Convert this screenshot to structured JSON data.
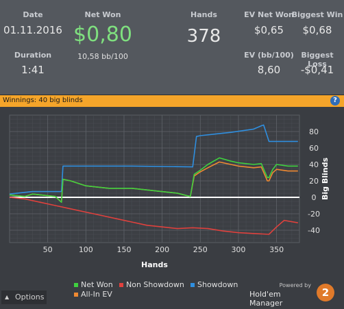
{
  "summary": {
    "date_label": "Date",
    "date_value": "01.11.2016",
    "duration_label": "Duration",
    "duration_value": "1:41",
    "netwon_label": "Net Won",
    "netwon_value": "$0,80",
    "netwon_bb": "10,58 bb/100",
    "hands_label": "Hands",
    "hands_value": "378",
    "ev_netwon_label": "EV Net Won",
    "ev_netwon_value": "$0,65",
    "ev_bb_label": "EV (bb/100)",
    "ev_bb_value": "8,60",
    "biggest_win_label": "Biggest Win",
    "biggest_win_value": "$0,68",
    "biggest_loss_label": "Biggest Loss",
    "biggest_loss_value": "-$0,41"
  },
  "winnings_bar": {
    "text": "Winnings: 40 big blinds",
    "help_label": "?"
  },
  "options_label": "Options",
  "brand": {
    "powered_by": "Powered by",
    "name": "Hold'em Manager",
    "version": "2"
  },
  "colors": {
    "net_won": "#3fd13f",
    "non_showdown": "#e0413d",
    "showdown": "#2f8fe0",
    "allin_ev": "#f08a32",
    "accent": "#f5a52a"
  },
  "chart_data": {
    "type": "line",
    "title": "",
    "xlabel": "Hands",
    "ylabel": "Big Blinds",
    "xlim": [
      0,
      380
    ],
    "ylim": [
      -55,
      100
    ],
    "x_ticks": [
      50,
      100,
      150,
      200,
      250,
      300,
      350
    ],
    "y_ticks": [
      -40,
      -20,
      0,
      20,
      40,
      60,
      80
    ],
    "grid": true,
    "legend_position": "bottom",
    "series": [
      {
        "name": "Net Won",
        "color_key": "net_won",
        "points": [
          [
            0,
            3
          ],
          [
            20,
            1
          ],
          [
            30,
            4
          ],
          [
            60,
            1
          ],
          [
            68,
            -6
          ],
          [
            70,
            22
          ],
          [
            80,
            20
          ],
          [
            100,
            14
          ],
          [
            130,
            11
          ],
          [
            160,
            11
          ],
          [
            190,
            8
          ],
          [
            220,
            5
          ],
          [
            237,
            1
          ],
          [
            242,
            28
          ],
          [
            250,
            33
          ],
          [
            260,
            40
          ],
          [
            275,
            48
          ],
          [
            290,
            44
          ],
          [
            300,
            42
          ],
          [
            320,
            40
          ],
          [
            330,
            41
          ],
          [
            338,
            24
          ],
          [
            340,
            24
          ],
          [
            345,
            34
          ],
          [
            350,
            40
          ],
          [
            365,
            38
          ],
          [
            378,
            38
          ]
        ]
      },
      {
        "name": "Non Showdown",
        "color_key": "non_showdown",
        "points": [
          [
            0,
            0
          ],
          [
            20,
            -2
          ],
          [
            40,
            -6
          ],
          [
            60,
            -10
          ],
          [
            80,
            -14
          ],
          [
            100,
            -18
          ],
          [
            120,
            -22
          ],
          [
            140,
            -26
          ],
          [
            160,
            -30
          ],
          [
            180,
            -34
          ],
          [
            200,
            -36
          ],
          [
            220,
            -38
          ],
          [
            240,
            -37
          ],
          [
            260,
            -38
          ],
          [
            280,
            -41
          ],
          [
            300,
            -43
          ],
          [
            320,
            -44
          ],
          [
            340,
            -45
          ],
          [
            350,
            -36
          ],
          [
            360,
            -28
          ],
          [
            378,
            -31
          ]
        ]
      },
      {
        "name": "Showdown",
        "color_key": "showdown",
        "points": [
          [
            0,
            4
          ],
          [
            30,
            7
          ],
          [
            68,
            7
          ],
          [
            70,
            38
          ],
          [
            140,
            38
          ],
          [
            160,
            38
          ],
          [
            240,
            37
          ],
          [
            245,
            74
          ],
          [
            250,
            75
          ],
          [
            270,
            77
          ],
          [
            290,
            79
          ],
          [
            320,
            83
          ],
          [
            330,
            87
          ],
          [
            333,
            88
          ],
          [
            340,
            68
          ],
          [
            378,
            68
          ]
        ]
      },
      {
        "name": "All-In EV",
        "color_key": "allin_ev",
        "points": [
          [
            0,
            3
          ],
          [
            20,
            1
          ],
          [
            30,
            4
          ],
          [
            60,
            1
          ],
          [
            68,
            -6
          ],
          [
            70,
            22
          ],
          [
            80,
            20
          ],
          [
            100,
            14
          ],
          [
            130,
            11
          ],
          [
            160,
            11
          ],
          [
            190,
            8
          ],
          [
            220,
            5
          ],
          [
            237,
            1
          ],
          [
            242,
            26
          ],
          [
            250,
            31
          ],
          [
            260,
            36
          ],
          [
            275,
            43
          ],
          [
            290,
            40
          ],
          [
            300,
            38
          ],
          [
            320,
            36
          ],
          [
            330,
            37
          ],
          [
            338,
            20
          ],
          [
            340,
            20
          ],
          [
            345,
            30
          ],
          [
            350,
            34
          ],
          [
            365,
            32
          ],
          [
            378,
            32
          ]
        ]
      }
    ]
  }
}
